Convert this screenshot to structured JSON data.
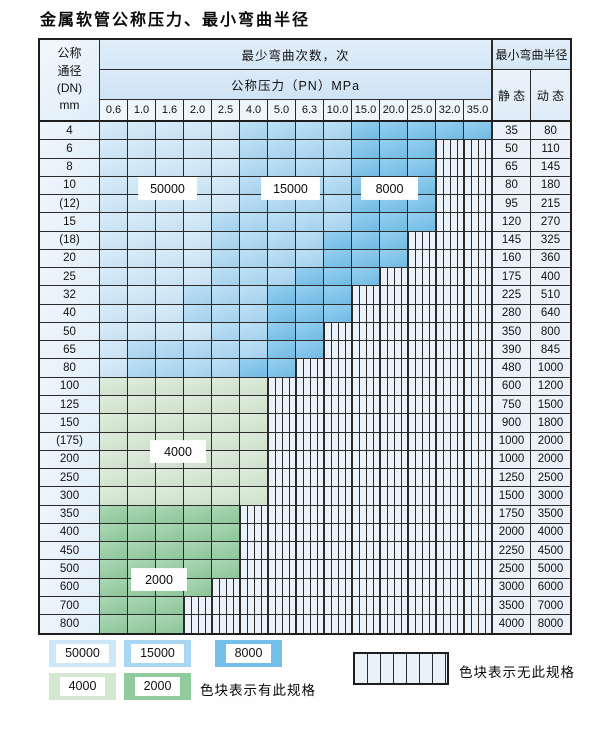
{
  "title": "金属软管公称压力、最小弯曲半径",
  "table": {
    "dn_header_lines": [
      "公称",
      "通径",
      "(DN)",
      "mm"
    ],
    "bend_header": "最少弯曲次数，次",
    "pn_header": "公称压力（PN）MPa",
    "pn_values": [
      "0.6",
      "1.0",
      "1.6",
      "2.0",
      "2.5",
      "4.0",
      "5.0",
      "6.3",
      "10.0",
      "15.0",
      "20.0",
      "25.0",
      "32.0",
      "35.0"
    ],
    "radius_header": "最小弯曲半径",
    "static_header": "静 态",
    "dynamic_header": "动 态",
    "rows": [
      {
        "dn": "4",
        "cells": "LLLLLMMMMDDDDD",
        "static": "35",
        "dynamic": "80"
      },
      {
        "dn": "6",
        "cells": "LLLLLMMMMDDDXX",
        "static": "50",
        "dynamic": "110"
      },
      {
        "dn": "8",
        "cells": "LLLLLMMMMDDDXX",
        "static": "65",
        "dynamic": "145"
      },
      {
        "dn": "10",
        "cells": "LLLLLMMMMDDDXX",
        "static": "80",
        "dynamic": "180"
      },
      {
        "dn": "(12)",
        "cells": "LLLLLMMMMDDDXX",
        "static": "95",
        "dynamic": "215"
      },
      {
        "dn": "15",
        "cells": "LLLLMMMMMDDDXX",
        "static": "120",
        "dynamic": "270"
      },
      {
        "dn": "(18)",
        "cells": "LLLLMMMMDDDXXX",
        "static": "145",
        "dynamic": "325"
      },
      {
        "dn": "20",
        "cells": "LLLLMMMMDDDXXX",
        "static": "160",
        "dynamic": "360"
      },
      {
        "dn": "25",
        "cells": "LLLLMMMDDDXXXX",
        "static": "175",
        "dynamic": "400"
      },
      {
        "dn": "32",
        "cells": "LLLMMMDDDXXXXX",
        "static": "225",
        "dynamic": "510"
      },
      {
        "dn": "40",
        "cells": "LLLMMMDDDXXXXX",
        "static": "280",
        "dynamic": "640"
      },
      {
        "dn": "50",
        "cells": "LLLLMMDDXXXXXX",
        "static": "350",
        "dynamic": "800"
      },
      {
        "dn": "65",
        "cells": "LMMMMMDDXXXXXX",
        "static": "390",
        "dynamic": "845"
      },
      {
        "dn": "80",
        "cells": "LMMMMDDXXXXXXX",
        "static": "480",
        "dynamic": "1000"
      },
      {
        "dn": "100",
        "cells": "GGGGGGXXXXXXXX",
        "static": "600",
        "dynamic": "1200"
      },
      {
        "dn": "125",
        "cells": "GGGGGGXXXXXXXX",
        "static": "750",
        "dynamic": "1500"
      },
      {
        "dn": "150",
        "cells": "GGGGGGXXXXXXXX",
        "static": "900",
        "dynamic": "1800"
      },
      {
        "dn": "(175)",
        "cells": "GGGGGGXXXXXXXX",
        "static": "1000",
        "dynamic": "2000"
      },
      {
        "dn": "200",
        "cells": "GGGGGGXXXXXXXX",
        "static": "1000",
        "dynamic": "2000"
      },
      {
        "dn": "250",
        "cells": "GGGGGGXXXXXXXX",
        "static": "1250",
        "dynamic": "2500"
      },
      {
        "dn": "300",
        "cells": "GGGGGGXXXXXXXX",
        "static": "1500",
        "dynamic": "3000"
      },
      {
        "dn": "350",
        "cells": "gggggXXXXXXXXX",
        "static": "1750",
        "dynamic": "3500"
      },
      {
        "dn": "400",
        "cells": "gggggXXXXXXXXX",
        "static": "2000",
        "dynamic": "4000"
      },
      {
        "dn": "450",
        "cells": "gggggXXXXXXXXX",
        "static": "2250",
        "dynamic": "4500"
      },
      {
        "dn": "500",
        "cells": "gggggXXXXXXXXX",
        "static": "2500",
        "dynamic": "5000"
      },
      {
        "dn": "600",
        "cells": "ggggXXXXXXXXXX",
        "static": "3000",
        "dynamic": "6000"
      },
      {
        "dn": "700",
        "cells": "gggXXXXXXXXXXX",
        "static": "3500",
        "dynamic": "7000"
      },
      {
        "dn": "800",
        "cells": "gggXXXXXXXXXXX",
        "static": "4000",
        "dynamic": "8000"
      }
    ]
  },
  "cell_colors": {
    "L": "#cde7f8",
    "M": "#a9d7f3",
    "D": "#74c0eb",
    "G": "#d4e7d1",
    "g": "#90cb9d",
    "X": "striped-no-spec"
  },
  "overlays": [
    "50000",
    "15000",
    "8000",
    "4000",
    "2000"
  ],
  "legend": {
    "items": [
      {
        "value": "50000",
        "color": "#cde7f8"
      },
      {
        "value": "15000",
        "color": "#a9d7f3"
      },
      {
        "value": "8000",
        "color": "#74c0eb"
      },
      {
        "value": "4000",
        "color": "#d4e7d1"
      },
      {
        "value": "2000",
        "color": "#90cb9d"
      }
    ],
    "has_spec_caption": "色块表示有此规格",
    "no_spec_caption": "色块表示无此规格"
  }
}
